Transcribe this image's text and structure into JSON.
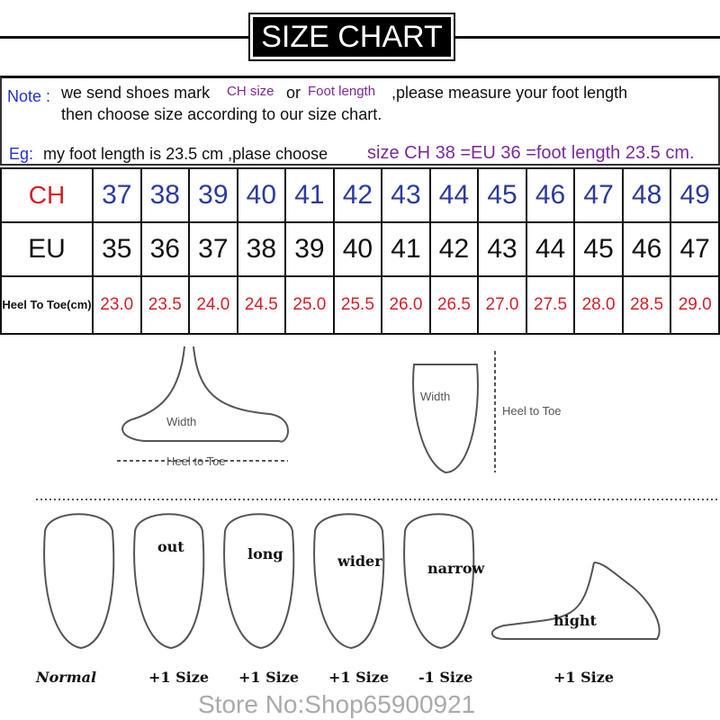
{
  "title": "SIZE CHART",
  "note": {
    "label": "Note :",
    "text1": "we send shoes mark",
    "ch_size": "CH size",
    "or": "or",
    "foot_length": "Foot length",
    "text2": ",please measure your foot length",
    "line2": "then choose size according to our size chart.",
    "eg_label": "Eg:",
    "eg_text": "my foot length is 23.5 cm ,plase choose",
    "eg_highlight": "size CH 38 =EU 36 =foot length 23.5 cm."
  },
  "table": {
    "rows": [
      {
        "label": "CH",
        "values": [
          "37",
          "38",
          "39",
          "40",
          "41",
          "42",
          "43",
          "44",
          "45",
          "46",
          "47",
          "48",
          "49"
        ]
      },
      {
        "label": "EU",
        "values": [
          "35",
          "36",
          "37",
          "38",
          "39",
          "40",
          "41",
          "42",
          "43",
          "44",
          "45",
          "46",
          "47"
        ]
      },
      {
        "label": "Heel To Toe(cm)",
        "values": [
          "23.0",
          "23.5",
          "24.0",
          "24.5",
          "25.0",
          "25.5",
          "26.0",
          "26.5",
          "27.0",
          "27.5",
          "28.0",
          "28.5",
          "29.0"
        ]
      }
    ]
  },
  "watermark": "Store No:Shop65900921",
  "diagram": {
    "width": "Width",
    "heel_to_toe": "Heel to Toe",
    "width2": "Width",
    "heel_to_toe2": "Heel to Toe",
    "feet": [
      {
        "label": "",
        "size": "Normal"
      },
      {
        "label": "out",
        "size": "+1 Size"
      },
      {
        "label": "long",
        "size": "+1 Size"
      },
      {
        "label": "wider",
        "size": "+1 Size"
      },
      {
        "label": "narrow",
        "size": "-1 Size"
      },
      {
        "label": "hight",
        "size": "+1 Size"
      }
    ]
  }
}
